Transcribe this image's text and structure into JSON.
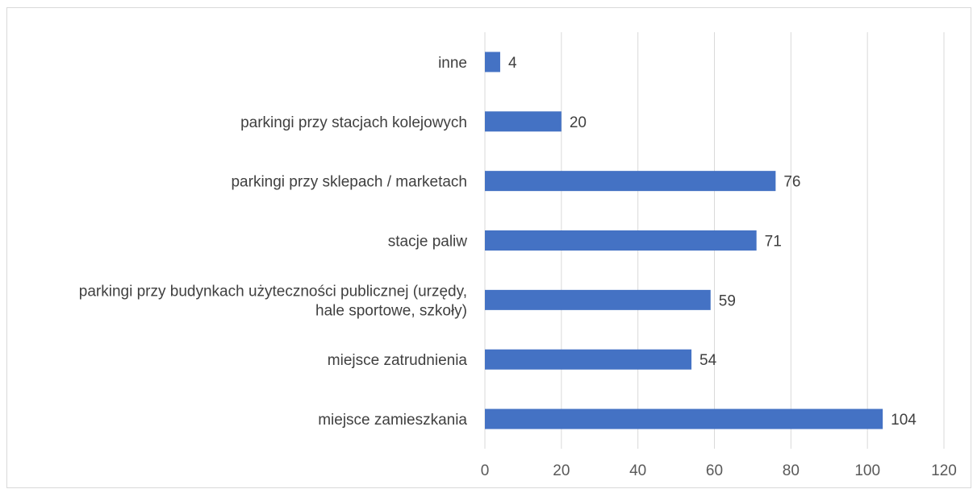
{
  "chart_data": {
    "type": "bar",
    "orientation": "horizontal",
    "categories": [
      [
        "inne"
      ],
      [
        "parkingi przy stacjach kolejowych"
      ],
      [
        "parkingi przy sklepach / marketach"
      ],
      [
        "stacje paliw"
      ],
      [
        "parkingi przy budynkach użyteczności publicznej (urzędy,",
        "hale sportowe, szkoły)"
      ],
      [
        "miejsce zatrudnienia"
      ],
      [
        "miejsce zamieszkania"
      ]
    ],
    "values": [
      4,
      20,
      76,
      71,
      59,
      54,
      104
    ],
    "xlim": [
      0,
      120
    ],
    "xticks": [
      0,
      20,
      40,
      60,
      80,
      100,
      120
    ],
    "grid": true,
    "data_labels": true,
    "colors": {
      "bar": "#4472C4",
      "grid": "#d9d9d9"
    }
  }
}
